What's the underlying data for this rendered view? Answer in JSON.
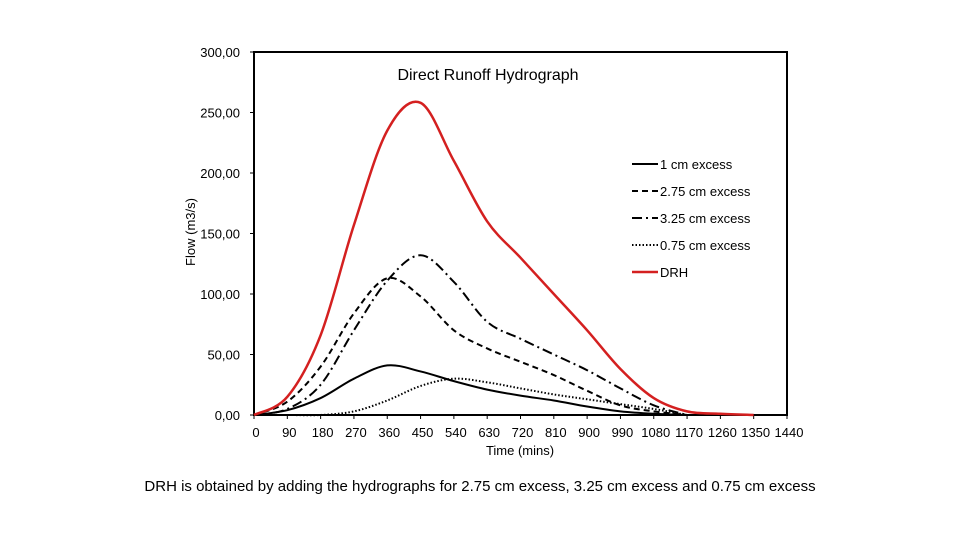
{
  "caption": "DRH is obtained by adding the hydrographs for 2.75 cm excess, 3.25 cm excess and 0.75 cm excess",
  "chart_data": {
    "type": "line",
    "title": "Direct Runoff Hydrograph",
    "xlabel": "Time (mins)",
    "ylabel": "Flow (m3/s)",
    "xlim": [
      0,
      1440
    ],
    "ylim": [
      0,
      300
    ],
    "x_ticks": [
      "0",
      "90",
      "180",
      "270",
      "360",
      "450",
      "540",
      "630",
      "720",
      "810",
      "900",
      "990",
      "1080",
      "1170",
      "1260",
      "1350",
      "1440"
    ],
    "y_ticks": [
      {
        "value": 0,
        "label": "0,00"
      },
      {
        "value": 50,
        "label": "50,00"
      },
      {
        "value": 100,
        "label": "100,00"
      },
      {
        "value": 150,
        "label": "150,00"
      },
      {
        "value": 200,
        "label": "200,00"
      },
      {
        "value": 250,
        "label": "250,00"
      },
      {
        "value": 300,
        "label": "300,00"
      }
    ],
    "legend_position": "right",
    "series": [
      {
        "name": "1 cm excess",
        "style": "solid",
        "color": "#000000",
        "x": [
          0,
          90,
          180,
          270,
          360,
          450,
          540,
          630,
          720,
          810,
          900,
          990,
          1080,
          1170
        ],
        "y": [
          0,
          4,
          14,
          30,
          41,
          36,
          28,
          21,
          16,
          12,
          7,
          3,
          1,
          0
        ]
      },
      {
        "name": "2.75 cm excess",
        "style": "dashed",
        "color": "#000000",
        "x": [
          0,
          90,
          180,
          270,
          360,
          450,
          540,
          630,
          720,
          810,
          900,
          990,
          1080,
          1170
        ],
        "y": [
          0,
          11,
          40,
          84,
          113,
          98,
          70,
          55,
          44,
          33,
          20,
          8,
          3,
          0
        ]
      },
      {
        "name": "3.25 cm excess",
        "style": "dashdot",
        "color": "#000000",
        "x": [
          0,
          90,
          180,
          270,
          360,
          450,
          540,
          630,
          720,
          810,
          900,
          990,
          1080,
          1170
        ],
        "y": [
          0,
          5,
          25,
          70,
          111,
          132,
          110,
          77,
          63,
          50,
          37,
          22,
          8,
          0
        ]
      },
      {
        "name": "0.75 cm excess",
        "style": "dotted",
        "color": "#000000",
        "x": [
          0,
          90,
          180,
          270,
          360,
          450,
          540,
          630,
          720,
          810,
          900,
          990,
          1080,
          1170
        ],
        "y": [
          0,
          0,
          0,
          3,
          12,
          24,
          30,
          27,
          22,
          17,
          13,
          9,
          5,
          0
        ]
      },
      {
        "name": "DRH",
        "style": "solid",
        "color": "#d42020",
        "x": [
          0,
          90,
          180,
          270,
          360,
          450,
          540,
          630,
          720,
          810,
          900,
          990,
          1080,
          1170,
          1260,
          1350
        ],
        "y": [
          0,
          15,
          66,
          157,
          235,
          258,
          210,
          160,
          130,
          100,
          70,
          38,
          14,
          3,
          1,
          0
        ]
      }
    ]
  }
}
